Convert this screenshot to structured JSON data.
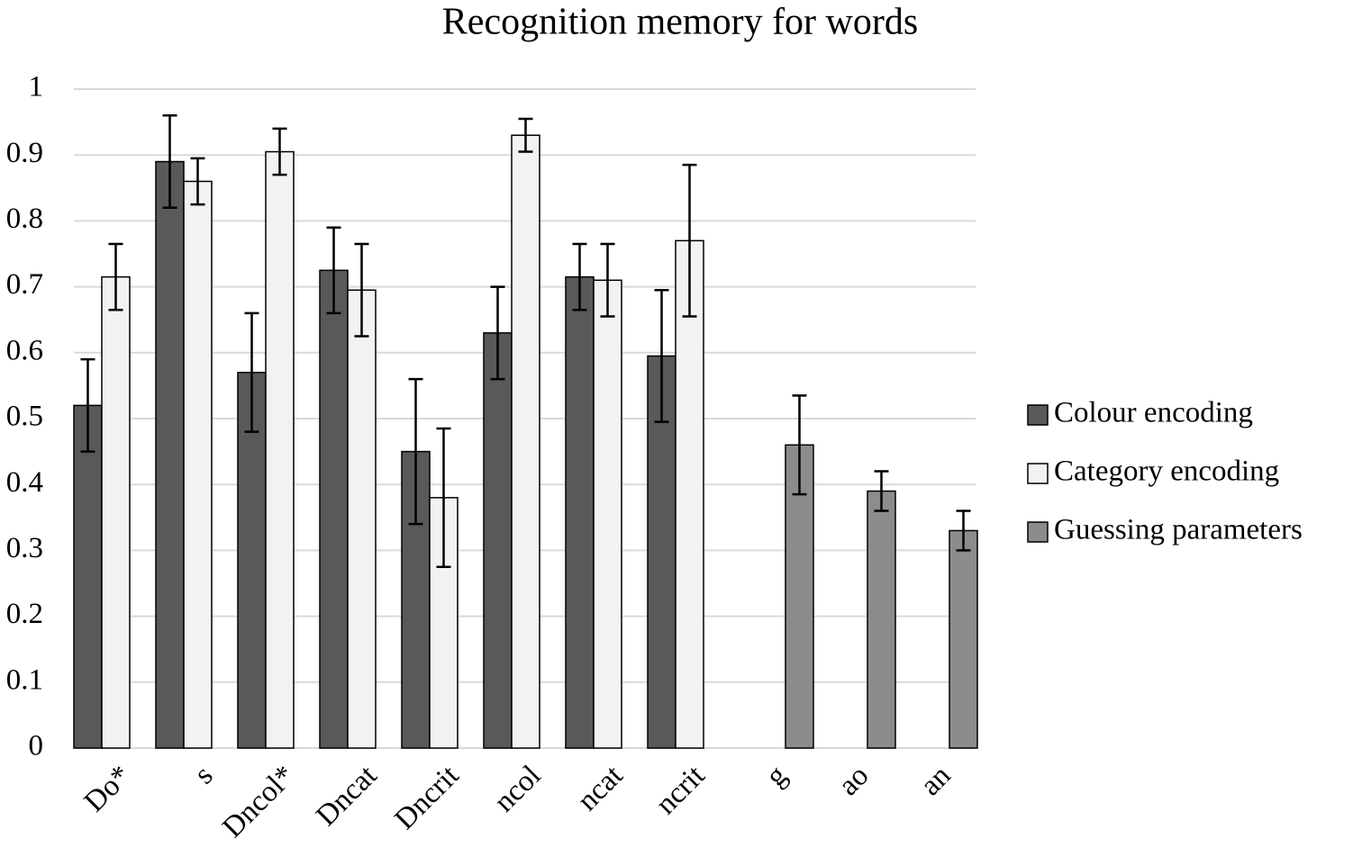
{
  "chart_data": {
    "type": "bar",
    "title": "Recognition memory for words",
    "categories": [
      "Do*",
      "s",
      "Dncol*",
      "Dncat",
      "Dncrit",
      "ncol",
      "ncat",
      "ncrit",
      "g",
      "ao",
      "an"
    ],
    "series": [
      {
        "name": "Colour encoding",
        "color": "#595959",
        "values": [
          0.52,
          0.89,
          0.57,
          0.725,
          0.45,
          0.63,
          0.715,
          0.595,
          null,
          null,
          null
        ],
        "errors": [
          0.07,
          0.07,
          0.09,
          0.065,
          0.11,
          0.07,
          0.05,
          0.1,
          null,
          null,
          null
        ]
      },
      {
        "name": "Category encoding",
        "color": "#f2f2f2",
        "values": [
          0.715,
          0.86,
          0.905,
          0.695,
          0.38,
          0.93,
          0.71,
          0.77,
          null,
          null,
          null
        ],
        "errors": [
          0.05,
          0.035,
          0.035,
          0.07,
          0.105,
          0.025,
          0.055,
          0.115,
          null,
          null,
          null
        ]
      },
      {
        "name": "Guessing parameters",
        "color": "#8c8c8c",
        "values": [
          null,
          null,
          null,
          null,
          null,
          null,
          null,
          null,
          0.46,
          0.39,
          0.33
        ],
        "errors": [
          null,
          null,
          null,
          null,
          null,
          null,
          null,
          null,
          0.075,
          0.03,
          0.03
        ]
      }
    ],
    "ylim": [
      0,
      1
    ],
    "yticks": [
      0,
      0.1,
      0.2,
      0.3,
      0.4,
      0.5,
      0.6,
      0.7,
      0.8,
      0.9,
      1
    ],
    "grid": true,
    "legend": "right"
  }
}
